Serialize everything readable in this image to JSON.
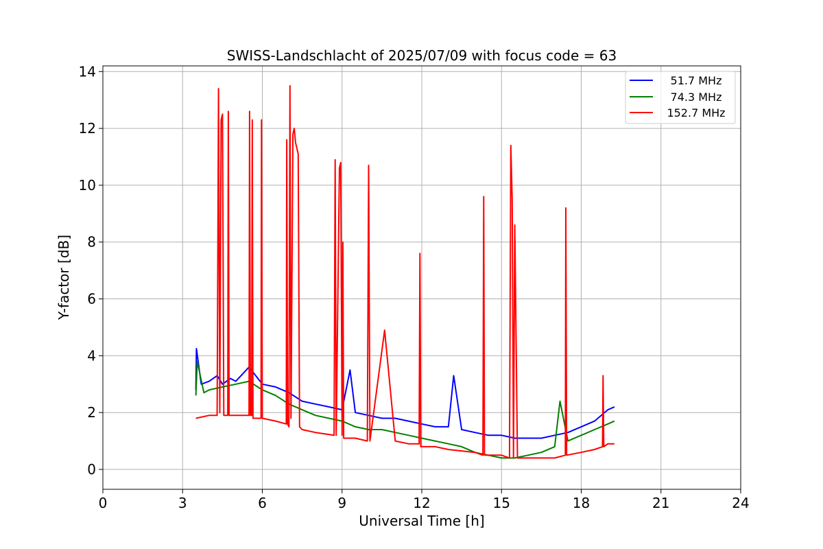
{
  "chart_data": {
    "type": "line",
    "title": "SWISS-Landschlacht of 2025/07/09 with focus code = 63",
    "xlabel": "Universal Time [h]",
    "ylabel": "Y-factor [dB]",
    "xlim": [
      0,
      24
    ],
    "ylim": [
      -0.7,
      14.2
    ],
    "xticks": [
      0,
      3,
      6,
      9,
      12,
      15,
      18,
      21,
      24
    ],
    "yticks": [
      0,
      2,
      4,
      6,
      8,
      10,
      12,
      14
    ],
    "grid": true,
    "legend_position": "top-right",
    "series": [
      {
        "name": "51.7 MHz",
        "color": "#0000ff",
        "x": [
          3.5,
          3.52,
          3.7,
          4.0,
          4.3,
          4.5,
          4.8,
          5.0,
          5.5,
          6.0,
          6.5,
          7.0,
          7.5,
          8.0,
          8.5,
          9.0,
          9.3,
          9.5,
          10.0,
          10.5,
          11.0,
          11.5,
          12.0,
          12.5,
          13.0,
          13.2,
          13.5,
          14.0,
          14.5,
          15.0,
          15.5,
          16.0,
          16.5,
          17.0,
          17.5,
          18.0,
          18.5,
          19.0,
          19.25
        ],
        "y": [
          2.8,
          4.25,
          3.0,
          3.1,
          3.3,
          3.0,
          3.2,
          3.1,
          3.6,
          3.0,
          2.9,
          2.7,
          2.4,
          2.3,
          2.2,
          2.1,
          3.5,
          2.0,
          1.9,
          1.8,
          1.8,
          1.7,
          1.6,
          1.5,
          1.5,
          3.3,
          1.4,
          1.3,
          1.2,
          1.2,
          1.1,
          1.1,
          1.1,
          1.2,
          1.3,
          1.5,
          1.7,
          2.1,
          2.2
        ]
      },
      {
        "name": "74.3 MHz",
        "color": "#008000",
        "x": [
          3.5,
          3.55,
          3.8,
          4.0,
          4.5,
          5.0,
          5.5,
          6.0,
          6.5,
          7.0,
          7.5,
          8.0,
          8.5,
          9.0,
          9.5,
          10.0,
          10.5,
          11.0,
          11.5,
          12.0,
          12.5,
          13.0,
          13.5,
          14.0,
          14.5,
          15.0,
          15.5,
          16.0,
          16.5,
          17.0,
          17.2,
          17.5,
          18.0,
          18.5,
          19.0,
          19.25
        ],
        "y": [
          2.6,
          3.8,
          2.7,
          2.8,
          2.9,
          3.0,
          3.1,
          2.8,
          2.6,
          2.3,
          2.1,
          1.9,
          1.8,
          1.7,
          1.5,
          1.4,
          1.4,
          1.3,
          1.2,
          1.1,
          1.0,
          0.9,
          0.8,
          0.6,
          0.5,
          0.4,
          0.4,
          0.5,
          0.6,
          0.8,
          2.4,
          1.0,
          1.2,
          1.4,
          1.6,
          1.7
        ]
      },
      {
        "name": "152.7 MHz",
        "color": "#ff0000",
        "x": [
          3.5,
          4.0,
          4.3,
          4.35,
          4.4,
          4.45,
          4.5,
          4.55,
          4.7,
          4.72,
          4.75,
          5.0,
          5.5,
          5.52,
          5.55,
          5.6,
          5.62,
          5.65,
          5.95,
          5.97,
          6.0,
          6.5,
          6.9,
          6.92,
          6.95,
          7.0,
          7.04,
          7.08,
          7.15,
          7.2,
          7.25,
          7.3,
          7.35,
          7.4,
          7.5,
          8.0,
          8.7,
          8.74,
          8.78,
          8.9,
          8.95,
          9.0,
          9.03,
          9.06,
          9.5,
          9.95,
          10.0,
          10.05,
          10.6,
          11.0,
          11.5,
          11.9,
          11.93,
          11.96,
          12.5,
          13.0,
          14.0,
          14.3,
          14.33,
          14.36,
          15.0,
          15.3,
          15.35,
          15.4,
          15.45,
          15.5,
          15.6,
          16.0,
          16.5,
          17.0,
          17.4,
          17.42,
          17.45,
          18.0,
          18.5,
          18.8,
          18.82,
          18.85,
          19.0,
          19.25
        ],
        "y": [
          1.8,
          1.9,
          1.9,
          13.4,
          2.0,
          12.3,
          12.5,
          1.9,
          1.9,
          12.6,
          1.9,
          1.9,
          1.9,
          12.6,
          1.9,
          1.9,
          12.3,
          1.8,
          1.8,
          12.3,
          1.8,
          1.7,
          1.6,
          11.6,
          1.6,
          1.5,
          13.5,
          1.8,
          11.8,
          12.0,
          11.5,
          11.3,
          11.1,
          1.5,
          1.4,
          1.3,
          1.2,
          10.9,
          1.2,
          10.6,
          10.8,
          1.2,
          8.0,
          1.1,
          1.1,
          1.0,
          10.7,
          1.0,
          4.9,
          1.0,
          0.9,
          0.9,
          7.6,
          0.8,
          0.8,
          0.7,
          0.6,
          0.5,
          9.6,
          0.5,
          0.5,
          0.4,
          11.4,
          9.5,
          0.4,
          8.6,
          0.4,
          0.4,
          0.4,
          0.4,
          0.5,
          9.2,
          0.5,
          0.6,
          0.7,
          0.8,
          3.3,
          0.8,
          0.9,
          0.9
        ]
      }
    ]
  }
}
